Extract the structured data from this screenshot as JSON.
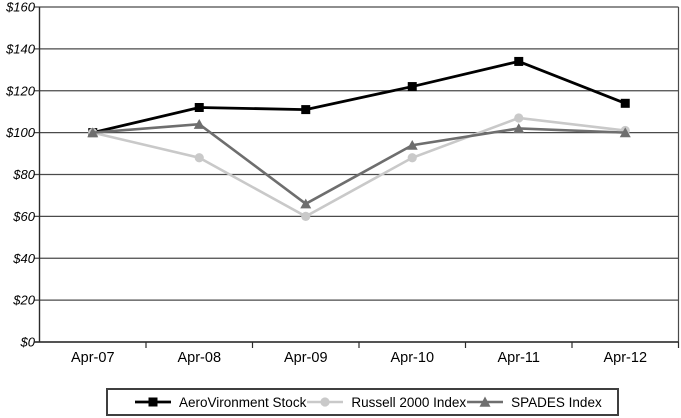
{
  "chart_data": {
    "type": "line",
    "title": "",
    "categories": [
      "Apr-07",
      "Apr-08",
      "Apr-09",
      "Apr-10",
      "Apr-11",
      "Apr-12"
    ],
    "series": [
      {
        "name": "AeroVironment Stock",
        "marker": "square",
        "color": "#000000",
        "line_width": 2.8,
        "values": [
          100,
          112,
          111,
          122,
          134,
          114
        ]
      },
      {
        "name": "Russell 2000 Index",
        "marker": "circle",
        "color": "#c9c9c9",
        "line_width": 2.6,
        "values": [
          100,
          88,
          60,
          88,
          107,
          101
        ]
      },
      {
        "name": "SPADES Index",
        "marker": "triangle",
        "color": "#6e6e6e",
        "line_width": 2.6,
        "values": [
          100,
          104,
          66,
          94,
          102,
          100
        ]
      }
    ],
    "xlabel": "",
    "ylabel": "",
    "ylim": [
      0,
      160
    ],
    "ytick_step": 20,
    "ytick_labels": [
      "$0",
      "$20",
      "$40",
      "$60",
      "$80",
      "$100",
      "$120",
      "$140",
      "$160"
    ],
    "grid": "horizontal",
    "legend_position": "bottom",
    "colors": {
      "gridline": "#4a4a4a",
      "axis": "#2b2b2b",
      "background": "#ffffff",
      "legend_border": "#3f3f3f"
    }
  }
}
